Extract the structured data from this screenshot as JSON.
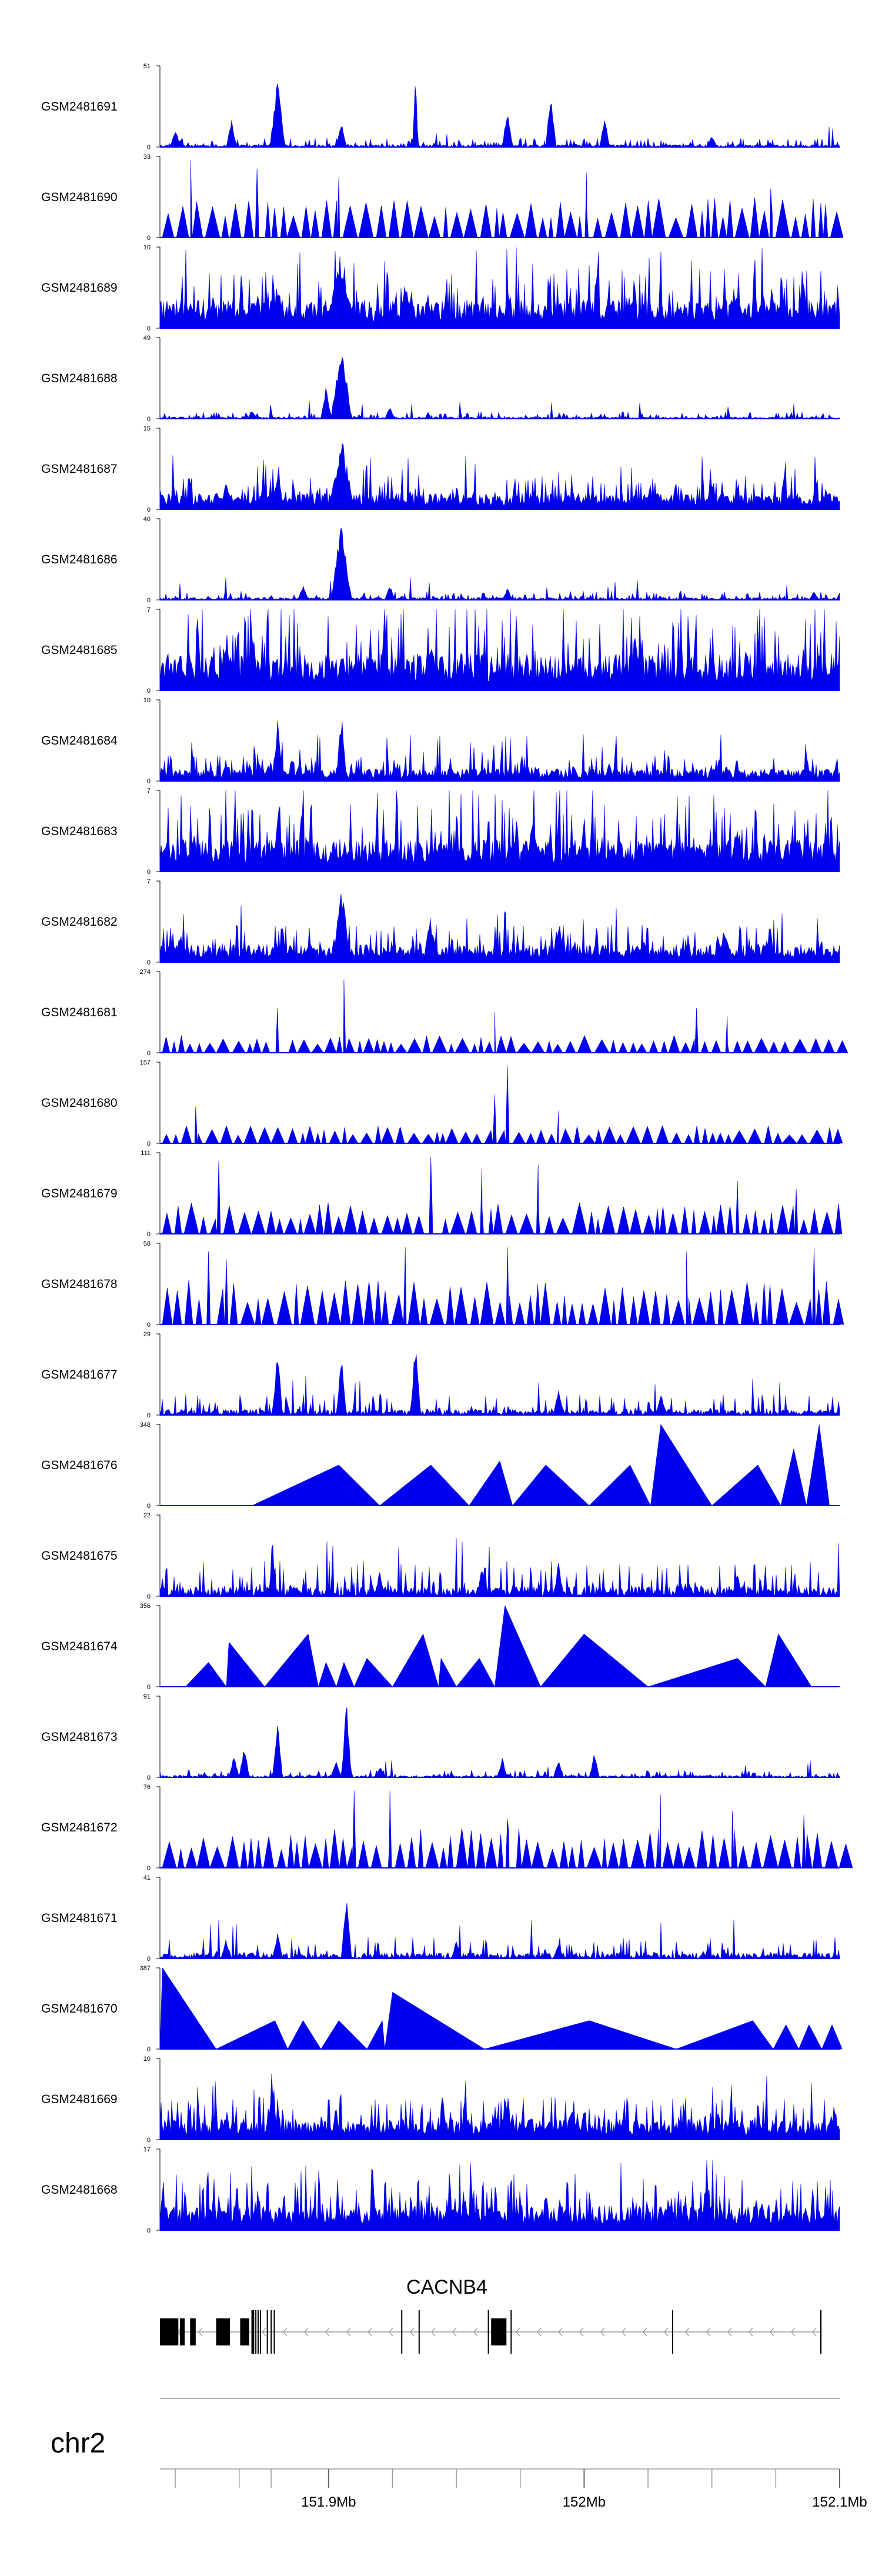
{
  "colors": {
    "signal": "#0000ee",
    "axis": "#000000",
    "intron": "#999999",
    "exon": "#000000"
  },
  "chart_data": {
    "type": "area",
    "x": [
      151.834,
      152.1
    ],
    "tracks": [
      {
        "label": "GSM2481691",
        "ymax": "51",
        "ymin": "0",
        "style": "spiky",
        "base": 0.05,
        "peaks": [
          [
            151.88,
            0.85,
            0.003
          ],
          [
            151.84,
            0.25,
            0.002
          ],
          [
            151.862,
            0.35,
            0.002
          ],
          [
            151.905,
            0.35,
            0.002
          ],
          [
            151.934,
            0.95,
            0.001
          ],
          [
            151.97,
            0.55,
            0.002
          ],
          [
            151.987,
            0.75,
            0.002
          ],
          [
            152.008,
            0.4,
            0.002
          ],
          [
            152.05,
            0.15,
            0.002
          ]
        ]
      },
      {
        "label": "GSM2481690",
        "ymax": "33",
        "ymin": "0",
        "style": "triangles",
        "base": 0.45,
        "peaks": [
          [
            151.846,
            0.95,
            0.002
          ],
          [
            151.872,
            0.85,
            0.002
          ],
          [
            151.904,
            0.75,
            0.002
          ],
          [
            152.001,
            0.8,
            0.002
          ],
          [
            152.073,
            0.6,
            0.002
          ]
        ]
      },
      {
        "label": "GSM2481689",
        "ymax": "10",
        "ymin": "0",
        "style": "dense",
        "base": 0.35,
        "peaks": [
          [
            151.905,
            1.0,
            0.006
          ],
          [
            151.88,
            0.65,
            0.003
          ],
          [
            151.93,
            0.6,
            0.003
          ],
          [
            152.06,
            0.55,
            0.003
          ]
        ]
      },
      {
        "label": "GSM2481688",
        "ymax": "49",
        "ymin": "0",
        "style": "spiky",
        "base": 0.04,
        "peaks": [
          [
            151.905,
            1.0,
            0.004
          ],
          [
            151.899,
            0.45,
            0.002
          ],
          [
            151.924,
            0.15,
            0.002
          ],
          [
            151.87,
            0.1,
            0.002
          ]
        ]
      },
      {
        "label": "GSM2481687",
        "ymax": "15",
        "ymin": "0",
        "style": "dense",
        "base": 0.2,
        "peaks": [
          [
            151.905,
            1.0,
            0.005
          ],
          [
            151.88,
            0.45,
            0.003
          ],
          [
            151.86,
            0.35,
            0.003
          ],
          [
            152.05,
            0.35,
            0.003
          ]
        ]
      },
      {
        "label": "GSM2481686",
        "ymax": "40",
        "ymin": "0",
        "style": "spiky",
        "base": 0.05,
        "peaks": [
          [
            151.905,
            1.0,
            0.004
          ],
          [
            151.89,
            0.2,
            0.002
          ],
          [
            151.924,
            0.2,
            0.002
          ],
          [
            151.97,
            0.15,
            0.002
          ],
          [
            152.09,
            0.12,
            0.002
          ]
        ]
      },
      {
        "label": "GSM2481685",
        "ymax": "7",
        "ymin": "0",
        "style": "dense",
        "base": 0.45,
        "peaks": [
          [
            151.86,
            0.75,
            0.003
          ],
          [
            151.94,
            0.7,
            0.003
          ],
          [
            152.02,
            0.75,
            0.003
          ]
        ]
      },
      {
        "label": "GSM2481684",
        "ymax": "10",
        "ymin": "0",
        "style": "dense",
        "base": 0.15,
        "peaks": [
          [
            151.88,
            0.95,
            0.002
          ],
          [
            151.905,
            0.9,
            0.002
          ],
          [
            151.86,
            0.3,
            0.002
          ],
          [
            152.01,
            0.3,
            0.002
          ]
        ]
      },
      {
        "label": "GSM2481683",
        "ymax": "7",
        "ymin": "0",
        "style": "dense",
        "base": 0.4,
        "peaks": [
          [
            151.88,
            0.7,
            0.003
          ],
          [
            151.98,
            0.7,
            0.003
          ],
          [
            152.06,
            0.7,
            0.003
          ]
        ]
      },
      {
        "label": "GSM2481682",
        "ymax": "7",
        "ymin": "0",
        "style": "dense",
        "base": 0.22,
        "peaks": [
          [
            151.905,
            0.95,
            0.004
          ],
          [
            151.94,
            0.6,
            0.003
          ],
          [
            151.99,
            0.55,
            0.003
          ],
          [
            152.055,
            0.45,
            0.003
          ]
        ]
      },
      {
        "label": "GSM2481681",
        "ymax": "274",
        "ymin": "0",
        "style": "triangles",
        "base": 0.2,
        "peaks": [
          [
            151.906,
            0.9,
            0.001
          ],
          [
            151.965,
            0.5,
            0.003
          ],
          [
            152.044,
            0.55,
            0.004
          ],
          [
            152.056,
            0.45,
            0.003
          ],
          [
            151.88,
            0.55,
            0.003
          ]
        ]
      },
      {
        "label": "GSM2481680",
        "ymax": "157",
        "ymin": "0",
        "style": "triangles",
        "base": 0.2,
        "peaks": [
          [
            151.97,
            0.95,
            0.001
          ],
          [
            151.965,
            0.6,
            0.002
          ],
          [
            151.99,
            0.4,
            0.002
          ],
          [
            151.848,
            0.45,
            0.003
          ]
        ]
      },
      {
        "label": "GSM2481679",
        "ymax": "111",
        "ymin": "0",
        "style": "triangles",
        "base": 0.35,
        "peaks": [
          [
            151.857,
            0.9,
            0.002
          ],
          [
            151.94,
            0.95,
            0.002
          ],
          [
            151.96,
            0.8,
            0.002
          ],
          [
            151.982,
            0.85,
            0.002
          ],
          [
            152.06,
            0.65,
            0.002
          ],
          [
            152.083,
            0.55,
            0.002
          ]
        ]
      },
      {
        "label": "GSM2481678",
        "ymax": "58",
        "ymin": "0",
        "style": "triangles",
        "base": 0.5,
        "peaks": [
          [
            151.853,
            0.9,
            0.002
          ],
          [
            151.93,
            0.95,
            0.002
          ],
          [
            151.97,
            0.95,
            0.002
          ],
          [
            152.04,
            0.9,
            0.002
          ],
          [
            152.09,
            0.95,
            0.002
          ],
          [
            151.86,
            0.8,
            0.002
          ]
        ]
      },
      {
        "label": "GSM2481677",
        "ymax": "29",
        "ymin": "0",
        "style": "spiky",
        "base": 0.12,
        "peaks": [
          [
            151.88,
            0.85,
            0.002
          ],
          [
            151.905,
            0.75,
            0.002
          ],
          [
            151.934,
            0.95,
            0.002
          ],
          [
            151.99,
            0.35,
            0.002
          ],
          [
            152.03,
            0.3,
            0.002
          ]
        ]
      },
      {
        "label": "GSM2481676",
        "ymax": "348",
        "ymin": "0",
        "style": "segments",
        "nodes": [
          [
            151.87,
            0.0
          ],
          [
            151.904,
            0.5
          ],
          [
            151.92,
            0.0
          ],
          [
            151.94,
            0.5
          ],
          [
            151.955,
            0.0
          ],
          [
            151.967,
            0.55
          ],
          [
            151.972,
            0.0
          ],
          [
            151.985,
            0.5
          ],
          [
            152.002,
            0.0
          ],
          [
            152.018,
            0.5
          ],
          [
            152.026,
            0.0
          ],
          [
            152.03,
            1.0
          ],
          [
            152.05,
            0.0
          ],
          [
            152.068,
            0.5
          ],
          [
            152.077,
            0.0
          ],
          [
            152.082,
            0.7
          ],
          [
            152.087,
            0.0
          ],
          [
            152.092,
            1.0
          ],
          [
            152.096,
            0.0
          ]
        ]
      },
      {
        "label": "GSM2481675",
        "ymax": "22",
        "ymin": "0",
        "style": "spiky",
        "base": 0.2,
        "peaks": [
          [
            151.878,
            0.95,
            0.001
          ],
          [
            151.92,
            0.35,
            0.002
          ],
          [
            151.96,
            0.4,
            0.002
          ],
          [
            151.99,
            0.45,
            0.002
          ],
          [
            152.06,
            0.3,
            0.002
          ]
        ]
      },
      {
        "label": "GSM2481674",
        "ymax": "356",
        "ymin": "0",
        "style": "segments",
        "nodes": [
          [
            151.844,
            0.0
          ],
          [
            151.853,
            0.3
          ],
          [
            151.86,
            0.0
          ],
          [
            151.861,
            0.55
          ],
          [
            151.875,
            0.0
          ],
          [
            151.892,
            0.65
          ],
          [
            151.896,
            0.0
          ],
          [
            151.899,
            0.3
          ],
          [
            151.903,
            0.0
          ],
          [
            151.906,
            0.3
          ],
          [
            151.91,
            0.0
          ],
          [
            151.915,
            0.35
          ],
          [
            151.925,
            0.0
          ],
          [
            151.937,
            0.65
          ],
          [
            151.943,
            0.0
          ],
          [
            151.944,
            0.35
          ],
          [
            151.95,
            0.0
          ],
          [
            151.959,
            0.35
          ],
          [
            151.965,
            0.0
          ],
          [
            151.969,
            1.0
          ],
          [
            151.983,
            0.0
          ],
          [
            152.0,
            0.65
          ],
          [
            152.025,
            0.0
          ],
          [
            152.06,
            0.35
          ],
          [
            152.071,
            0.0
          ],
          [
            152.076,
            0.65
          ],
          [
            152.089,
            0.0
          ]
        ]
      },
      {
        "label": "GSM2481673",
        "ymax": "91",
        "ymin": "0",
        "style": "spiky",
        "base": 0.04,
        "peaks": [
          [
            151.88,
            0.8,
            0.002
          ],
          [
            151.907,
            0.95,
            0.002
          ],
          [
            151.863,
            0.3,
            0.002
          ],
          [
            151.867,
            0.4,
            0.002
          ],
          [
            151.903,
            0.25,
            0.002
          ],
          [
            151.92,
            0.15,
            0.002
          ],
          [
            151.968,
            0.25,
            0.002
          ],
          [
            151.99,
            0.25,
            0.002
          ],
          [
            152.004,
            0.3,
            0.002
          ]
        ]
      },
      {
        "label": "GSM2481672",
        "ymax": "76",
        "ymin": "0",
        "style": "triangles",
        "base": 0.45,
        "peaks": [
          [
            151.91,
            0.95,
            0.002
          ],
          [
            151.924,
            0.95,
            0.002
          ],
          [
            151.97,
            0.6,
            0.002
          ],
          [
            152.03,
            0.9,
            0.002
          ],
          [
            152.058,
            0.7,
            0.002
          ],
          [
            152.086,
            0.65,
            0.002
          ]
        ]
      },
      {
        "label": "GSM2481671",
        "ymax": "41",
        "ymin": "0",
        "style": "spiky",
        "base": 0.12,
        "peaks": [
          [
            151.907,
            0.95,
            0.002
          ],
          [
            151.88,
            0.35,
            0.002
          ],
          [
            151.86,
            0.25,
            0.002
          ],
          [
            151.95,
            0.25,
            0.002
          ],
          [
            151.99,
            0.2,
            0.002
          ]
        ]
      },
      {
        "label": "GSM2481670",
        "ymax": "387",
        "ymin": "0",
        "style": "segments",
        "nodes": [
          [
            151.834,
            0.0
          ],
          [
            151.835,
            1.0
          ],
          [
            151.856,
            0.0
          ],
          [
            151.879,
            0.35
          ],
          [
            151.884,
            0.0
          ],
          [
            151.89,
            0.35
          ],
          [
            151.897,
            0.0
          ],
          [
            151.904,
            0.35
          ],
          [
            151.915,
            0.0
          ],
          [
            151.921,
            0.35
          ],
          [
            151.922,
            0.0
          ],
          [
            151.925,
            0.7
          ],
          [
            151.961,
            0.0
          ],
          [
            152.002,
            0.35
          ],
          [
            152.036,
            0.0
          ],
          [
            152.066,
            0.35
          ],
          [
            152.074,
            0.0
          ],
          [
            152.079,
            0.3
          ],
          [
            152.084,
            0.0
          ],
          [
            152.088,
            0.3
          ],
          [
            152.093,
            0.0
          ],
          [
            152.097,
            0.3
          ],
          [
            152.101,
            0.0
          ]
        ]
      },
      {
        "label": "GSM2481669",
        "ymax": "10",
        "ymin": "0",
        "style": "dense",
        "base": 0.25,
        "peaks": [
          [
            151.878,
            0.95,
            0.002
          ],
          [
            151.86,
            0.4,
            0.002
          ],
          [
            151.97,
            0.6,
            0.002
          ],
          [
            151.995,
            0.5,
            0.002
          ]
        ]
      },
      {
        "label": "GSM2481668",
        "ymax": "17",
        "ymin": "0",
        "style": "dense",
        "base": 0.3,
        "peaks": [
          [
            152.048,
            0.95,
            0.002
          ],
          [
            151.868,
            0.45,
            0.002
          ],
          [
            152.07,
            0.4,
            0.002
          ]
        ]
      }
    ],
    "gene": {
      "name": "CACNB4",
      "strand": "-",
      "exons": [
        [
          151.834,
          151.8412
        ],
        [
          151.8418,
          151.8437
        ],
        [
          151.8458,
          151.848
        ],
        [
          151.856,
          151.8614
        ],
        [
          151.8654,
          151.8689
        ],
        [
          151.8698,
          151.8709
        ],
        [
          151.8713,
          151.8717
        ],
        [
          151.8722,
          151.8726
        ],
        [
          151.8731,
          151.8735
        ],
        [
          151.8758,
          151.8761
        ],
        [
          151.8773,
          151.8776
        ],
        [
          151.8785,
          151.8788
        ],
        [
          151.9284,
          151.9287
        ],
        [
          151.9352,
          151.9355
        ],
        [
          151.9623,
          151.9627
        ],
        [
          151.9636,
          151.9696
        ],
        [
          151.9712,
          151.9716
        ],
        [
          152.0344,
          152.0347
        ],
        [
          152.0924,
          152.0929
        ]
      ]
    },
    "axis": {
      "chrom": "chr2",
      "ticks": [
        151.84,
        151.865,
        151.8775,
        151.9,
        151.925,
        151.95,
        151.975,
        152.0,
        152.025,
        152.05,
        152.075,
        152.1
      ],
      "labels": [
        {
          "pos": 151.9,
          "text": "151.9Mb"
        },
        {
          "pos": 152.0,
          "text": "152Mb"
        },
        {
          "pos": 152.1,
          "text": "152.1Mb"
        }
      ]
    }
  }
}
